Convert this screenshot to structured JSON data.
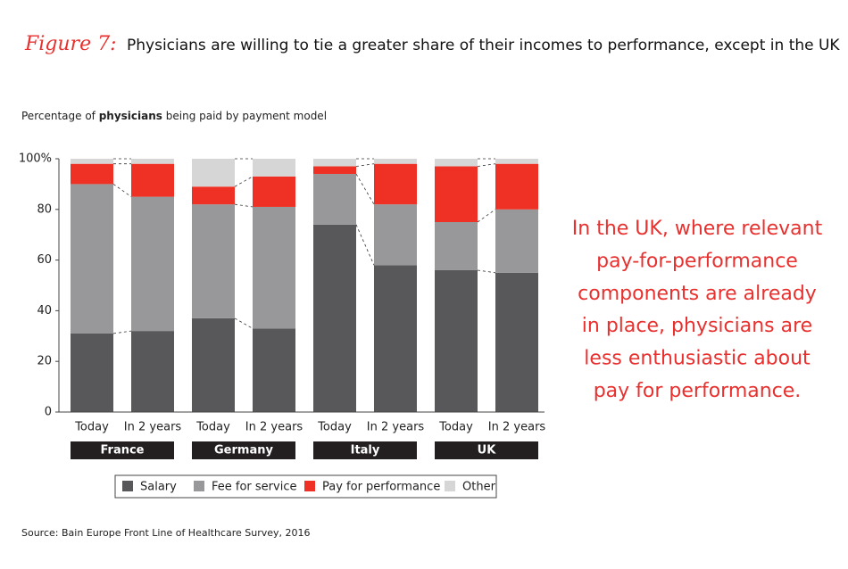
{
  "chart_data": {
    "type": "stacked-bar",
    "title_label": "Figure 7:",
    "title": "Physicians are willing to tie a greater share of their incomes to performance, except in the UK",
    "subtitle": [
      "Percentage of ",
      "physicians",
      " being paid by payment model"
    ],
    "categories": [
      "Today",
      "In 2 years",
      "Today",
      "In 2 years",
      "Today",
      "In 2 years",
      "Today",
      "In 2 years"
    ],
    "groups": [
      "France",
      "Germany",
      "Italy",
      "UK"
    ],
    "series": [
      {
        "name": "Salary",
        "color": "#58585a",
        "values": [
          31,
          32,
          37,
          33,
          74,
          58,
          56,
          55
        ]
      },
      {
        "name": "Fee for service",
        "color": "#98989b",
        "values": [
          59,
          53,
          45,
          48,
          20,
          24,
          19,
          25
        ]
      },
      {
        "name": "Pay for performance",
        "color": "#ee3124",
        "values": [
          8,
          13,
          7,
          12,
          3,
          16,
          22,
          18
        ]
      },
      {
        "name": "Other",
        "color": "#d6d6d6",
        "values": [
          2,
          2,
          11,
          7,
          3,
          2,
          3,
          2
        ]
      }
    ],
    "ylim": [
      0,
      100
    ],
    "yticks": [
      0,
      20,
      40,
      60,
      80,
      {
        "value": 100,
        "label": "100%"
      }
    ],
    "annotation": [
      "In the UK, where relevant",
      "pay-for-performance",
      "components are already",
      "in place, physicians are",
      "less enthusiastic about",
      "pay for performance."
    ],
    "source": "Source: Bain Europe Front Line of Healthcare Survey, 2016"
  }
}
